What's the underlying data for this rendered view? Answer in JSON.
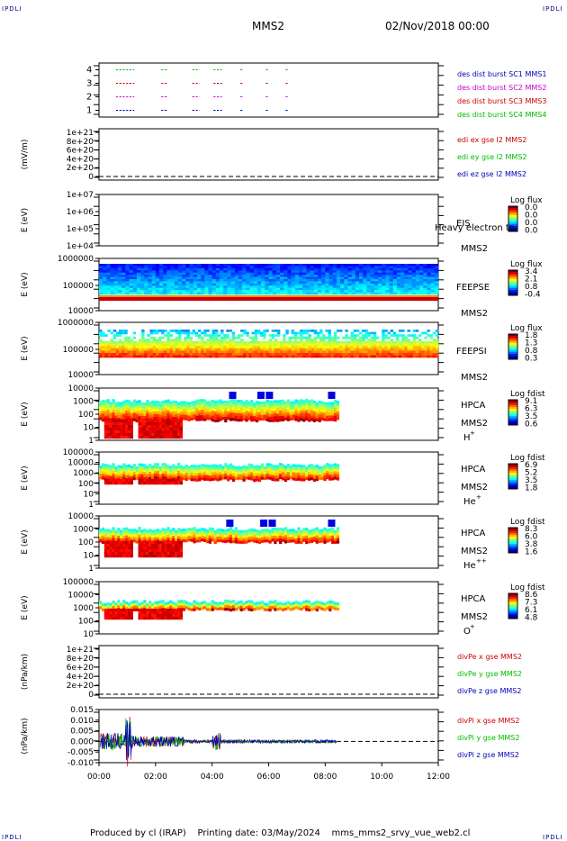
{
  "corner_label": "IPDLI",
  "header": {
    "title": "MMS2",
    "date": "02/Nov/2018 00:00"
  },
  "footer": {
    "text": "Produced by cl (IRAP)    Printing date: 03/May/2024    mms_mms2_srvy_vue_web2.cl"
  },
  "colors": {
    "red": "#cc0000",
    "green": "#00bb00",
    "blue": "#0000bb",
    "magenta": "#cc00cc"
  },
  "chart_data": [
    {
      "type": "scatter",
      "id": "burst",
      "ylim": [
        0.5,
        4.5
      ],
      "y_ticks": [
        "4",
        "3",
        "2",
        "1"
      ],
      "series": [
        {
          "name": "des dist burst SC1 MMS1",
          "y": 1,
          "color": "blue",
          "segments_hours": [
            [
              0.6,
              1.25
            ],
            [
              2.2,
              2.45
            ],
            [
              3.3,
              3.55
            ],
            [
              4.05,
              4.35
            ],
            [
              5.0,
              5.1
            ],
            [
              5.9,
              6.0
            ],
            [
              6.6,
              6.7
            ]
          ]
        },
        {
          "name": "des dist burst SC2 MMS2",
          "y": 2,
          "color": "magenta",
          "segments_hours": [
            [
              0.6,
              1.25
            ],
            [
              2.2,
              2.45
            ],
            [
              3.3,
              3.55
            ],
            [
              4.05,
              4.35
            ],
            [
              5.0,
              5.1
            ],
            [
              5.9,
              6.0
            ],
            [
              6.6,
              6.7
            ]
          ]
        },
        {
          "name": "des dist burst SC3 MMS3",
          "y": 3,
          "color": "red",
          "segments_hours": [
            [
              0.6,
              1.25
            ],
            [
              2.2,
              2.45
            ],
            [
              3.3,
              3.55
            ],
            [
              4.05,
              4.35
            ],
            [
              5.0,
              5.1
            ],
            [
              5.9,
              6.0
            ],
            [
              6.6,
              6.7
            ]
          ]
        },
        {
          "name": "des dist burst SC4 MMS4",
          "y": 4,
          "color": "green",
          "segments_hours": [
            [
              0.6,
              1.25
            ],
            [
              2.2,
              2.45
            ],
            [
              3.3,
              3.55
            ],
            [
              4.05,
              4.35
            ],
            [
              5.0,
              5.1
            ],
            [
              5.9,
              6.0
            ],
            [
              6.6,
              6.7
            ]
          ]
        }
      ]
    },
    {
      "type": "line",
      "id": "edi",
      "ylabel": "(mV/m)",
      "y_ticks": [
        "1e+21",
        "8e+20",
        "6e+20",
        "4e+20",
        "2e+20",
        "0"
      ],
      "series": [
        {
          "name": "edi ex gse l2 MMS2",
          "color": "red"
        },
        {
          "name": "edi ey gse l2 MMS2",
          "color": "green"
        },
        {
          "name": "edi ez gse l2 MMS2",
          "color": "blue"
        }
      ]
    },
    {
      "type": "heatmap",
      "id": "eis",
      "ylabel": "E (eV)",
      "y_ticks": [
        "1e+07",
        "1e+06",
        "1e+05",
        "1e+04"
      ],
      "instrument": "EIS",
      "spacecraft": "MMS2",
      "note": "Heavy electron to",
      "cbar_title": "Log flux",
      "cbar_ticks": [
        "0.0",
        "0.0",
        "0.0",
        "0.0"
      ]
    },
    {
      "type": "heatmap",
      "id": "feepse",
      "ylabel": "E (eV)",
      "y_ticks": [
        "1000000",
        "100000",
        "10000"
      ],
      "instrument": "FEEPSE",
      "spacecraft": "MMS2",
      "cbar_title": "Log flux",
      "cbar_ticks": [
        "3.4",
        "2.1",
        "0.8",
        "-0.4"
      ]
    },
    {
      "type": "heatmap",
      "id": "feepsi",
      "ylabel": "E (eV)",
      "y_ticks": [
        "1000000",
        "100000",
        "10000"
      ],
      "instrument": "FEEPSI",
      "spacecraft": "MMS2",
      "cbar_title": "Log flux",
      "cbar_ticks": [
        "1.8",
        "1.3",
        "0.8",
        "0.3"
      ]
    },
    {
      "type": "heatmap",
      "id": "hpca_h",
      "ylabel": "E (eV)",
      "y_ticks": [
        "10000",
        "1000",
        "100",
        "10",
        "1"
      ],
      "instrument": "HPCA",
      "spacecraft": "MMS2",
      "species": "H",
      "charge": "+",
      "cbar_title": "Log fdist",
      "cbar_ticks": [
        "9.1",
        "6.3",
        "3.5",
        "0.6"
      ]
    },
    {
      "type": "heatmap",
      "id": "hpca_he",
      "ylabel": "E (eV)",
      "y_ticks": [
        "100000",
        "10000",
        "1000",
        "100",
        "10",
        "1"
      ],
      "instrument": "HPCA",
      "spacecraft": "MMS2",
      "species": "He",
      "charge": "+",
      "cbar_title": "Log fdist",
      "cbar_ticks": [
        "6.9",
        "5.2",
        "3.5",
        "1.8"
      ]
    },
    {
      "type": "heatmap",
      "id": "hpca_hepp",
      "ylabel": "E (eV)",
      "y_ticks": [
        "10000",
        "1000",
        "100",
        "10",
        "1"
      ],
      "instrument": "HPCA",
      "spacecraft": "MMS2",
      "species": "He",
      "charge": "++",
      "cbar_title": "Log fdist",
      "cbar_ticks": [
        "8.3",
        "6.0",
        "3.8",
        "1.6"
      ]
    },
    {
      "type": "heatmap",
      "id": "hpca_o",
      "ylabel": "E (eV)",
      "y_ticks": [
        "100000",
        "10000",
        "1000",
        "100",
        "10"
      ],
      "instrument": "HPCA",
      "spacecraft": "MMS2",
      "species": "O",
      "charge": "+",
      "cbar_title": "Log fdist",
      "cbar_ticks": [
        "8.6",
        "7.3",
        "6.1",
        "4.8"
      ]
    },
    {
      "type": "line",
      "id": "divpe",
      "ylabel": "(nPa/km)",
      "y_ticks": [
        "1e+21",
        "8e+20",
        "6e+20",
        "4e+20",
        "2e+20",
        "0"
      ],
      "series": [
        {
          "name": "divPe x gse MMS2",
          "color": "red"
        },
        {
          "name": "divPe y gse MMS2",
          "color": "green"
        },
        {
          "name": "divPe z gse MMS2",
          "color": "blue"
        }
      ]
    },
    {
      "type": "line",
      "id": "divpi",
      "ylabel": "(nPa/km)",
      "ylim": [
        -0.01,
        0.015
      ],
      "y_ticks": [
        "0.015",
        "0.010",
        "0.005",
        "0.000",
        "-0.005",
        "-0.010"
      ],
      "series": [
        {
          "name": "divPi x gse MMS2",
          "color": "red"
        },
        {
          "name": "divPi y gse MMS2",
          "color": "green"
        },
        {
          "name": "divPi z gse MMS2",
          "color": "blue"
        }
      ]
    }
  ],
  "x_axis": {
    "xlim_hours": [
      0,
      12
    ],
    "ticks": [
      "00:00",
      "02:00",
      "04:00",
      "06:00",
      "08:00",
      "10:00",
      "12:00"
    ]
  }
}
